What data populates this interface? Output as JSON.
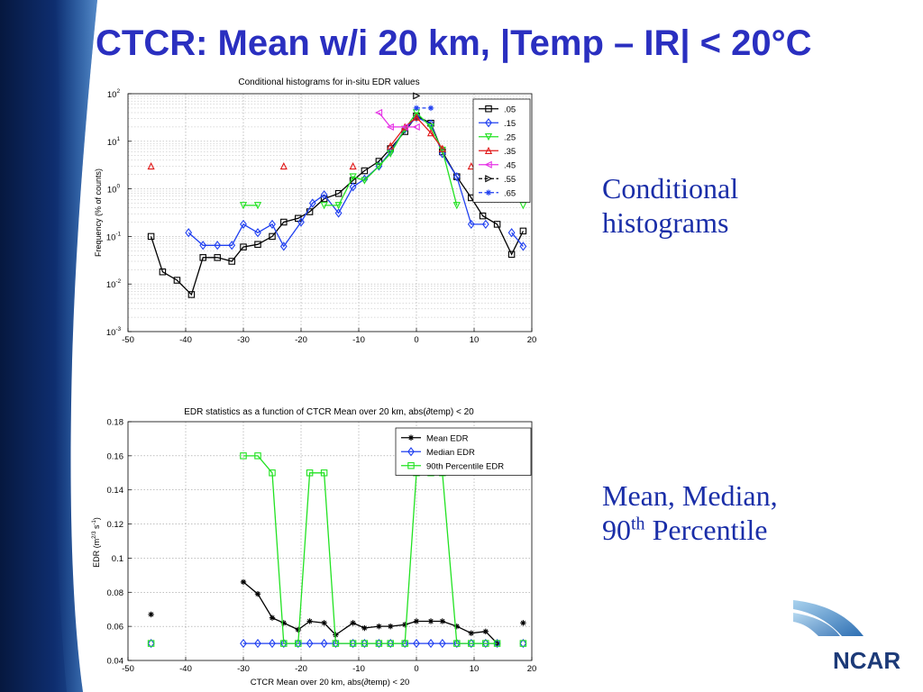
{
  "slide": {
    "title": "CTCR: Mean w/i 20 km, |Temp – IR| < 20°C",
    "note1_line1": "Conditional",
    "note1_line2": "histograms",
    "note2_line1": "Mean, Median,",
    "note2_line2_base": "90",
    "note2_line2_sup": "th",
    "note2_line2_rest": " Percentile",
    "logo_text": "NCAR"
  },
  "colors": {
    "title": "#2a2fc0",
    "side_text": "#1a2ea8",
    "band": "#0d2a6b",
    "logo": "#1c3a78"
  },
  "chart_data": [
    {
      "type": "line",
      "title": "Conditional histograms for in-situ EDR values",
      "xlabel": "",
      "ylabel": "Frequency (% of counts)",
      "xlim": [
        -50,
        20
      ],
      "ylim": [
        0.001,
        100
      ],
      "yscale": "log",
      "xticks": [
        -50,
        -40,
        -30,
        -20,
        -10,
        0,
        10,
        20
      ],
      "ytick_labels": [
        {
          "base": "10",
          "exp": "2",
          "value": 100
        },
        {
          "base": "10",
          "exp": "1",
          "value": 10
        },
        {
          "base": "10",
          "exp": "0",
          "value": 1
        },
        {
          "base": "10",
          "exp": "-1",
          "value": 0.1
        },
        {
          "base": "10",
          "exp": "-2",
          "value": 0.01
        },
        {
          "base": "10",
          "exp": "-3",
          "value": 0.001
        }
      ],
      "grid": true,
      "legend_position": "top-right",
      "series": [
        {
          "name": ".05",
          "color": "#000000",
          "marker": "square",
          "dashed": false,
          "segments": [
            [
              [
                -46,
                0.1
              ],
              [
                -44,
                0.018
              ],
              [
                -41.5,
                0.012
              ],
              [
                -39,
                0.006
              ],
              [
                -37,
                0.036
              ],
              [
                -34.5,
                0.036
              ],
              [
                -32,
                0.03
              ],
              [
                -30,
                0.06
              ],
              [
                -27.5,
                0.068
              ],
              [
                -25,
                0.1
              ],
              [
                -23,
                0.2
              ],
              [
                -20.5,
                0.24
              ],
              [
                -18.5,
                0.33
              ],
              [
                -16,
                0.62
              ],
              [
                -13.5,
                0.8
              ],
              [
                -11,
                1.5
              ],
              [
                -9,
                2.4
              ],
              [
                -6.5,
                3.8
              ],
              [
                -4.5,
                7
              ],
              [
                -2,
                16
              ],
              [
                0,
                34
              ],
              [
                2.5,
                24
              ],
              [
                4.5,
                6
              ],
              [
                7,
                1.8
              ],
              [
                9.5,
                0.65
              ],
              [
                11.5,
                0.27
              ],
              [
                14,
                0.18
              ],
              [
                16.5,
                0.042
              ],
              [
                18.5,
                0.13
              ]
            ]
          ]
        },
        {
          "name": ".15",
          "color": "#1f3ff0",
          "marker": "diamond",
          "dashed": false,
          "segments": [
            [
              [
                -39.5,
                0.12
              ],
              [
                -37,
                0.065
              ],
              [
                -34.5,
                0.065
              ],
              [
                -32,
                0.065
              ],
              [
                -30,
                0.18
              ],
              [
                -27.5,
                0.12
              ],
              [
                -25,
                0.18
              ],
              [
                -23,
                0.062
              ],
              [
                -20,
                0.2
              ],
              [
                -18,
                0.5
              ],
              [
                -16,
                0.75
              ],
              [
                -13.5,
                0.31
              ],
              [
                -11,
                1.1
              ],
              [
                -9,
                1.6
              ],
              [
                -6.5,
                3
              ],
              [
                -4.5,
                6
              ],
              [
                -2,
                18
              ],
              [
                0,
                32
              ],
              [
                2.5,
                23
              ],
              [
                4.5,
                5.5
              ],
              [
                7,
                1.8
              ],
              [
                9.5,
                0.18
              ],
              [
                12,
                0.18
              ]
            ],
            [
              [
                16.5,
                0.12
              ],
              [
                18.5,
                0.062
              ]
            ]
          ]
        },
        {
          "name": ".25",
          "color": "#22e222",
          "marker": "triangle-down",
          "dashed": false,
          "segments": [
            [
              [
                -30,
                0.45
              ],
              [
                -27.5,
                0.45
              ]
            ],
            [
              [
                -16,
                0.45
              ],
              [
                -13.5,
                0.45
              ],
              [
                -11,
                1.8
              ],
              [
                -9,
                1.5
              ],
              [
                -6.5,
                3
              ],
              [
                -4.5,
                5.5
              ],
              [
                -2,
                18
              ],
              [
                0,
                40
              ],
              [
                2.5,
                20
              ],
              [
                4.5,
                6.5
              ],
              [
                7,
                0.45
              ]
            ],
            [
              [
                18.5,
                0.45
              ]
            ]
          ]
        },
        {
          "name": ".35",
          "color": "#e01818",
          "marker": "triangle-up",
          "dashed": false,
          "segments": [
            [
              [
                -46,
                3
              ]
            ],
            [
              [
                -23,
                3
              ]
            ],
            [
              [
                -11,
                3
              ]
            ],
            [
              [
                -4.5,
                8
              ],
              [
                -2,
                20
              ],
              [
                0,
                32
              ],
              [
                2.5,
                15
              ],
              [
                4.5,
                7
              ]
            ],
            [
              [
                9.5,
                3
              ]
            ]
          ]
        },
        {
          "name": ".45",
          "color": "#e632e6",
          "marker": "triangle-left",
          "dashed": false,
          "segments": [
            [
              [
                -6.5,
                40
              ],
              [
                -4.5,
                20
              ],
              [
                -2,
                20
              ],
              [
                0,
                20
              ]
            ]
          ]
        },
        {
          "name": ".55",
          "color": "#000000",
          "marker": "triangle-right",
          "dashed": true,
          "segments": [
            [
              [
                0,
                90
              ]
            ]
          ]
        },
        {
          "name": ".65",
          "color": "#1f3ff0",
          "marker": "star",
          "dashed": true,
          "segments": [
            [
              [
                0,
                50
              ],
              [
                2.5,
                50
              ]
            ]
          ]
        }
      ]
    },
    {
      "type": "line",
      "title": "EDR statistics as a function of CTCR Mean over 20 km, abs(∂temp) < 20",
      "xlabel": "CTCR Mean over 20 km, abs(∂temp) < 20",
      "ylabel": "EDR (m2/3 s-1)",
      "ylabel_parts": {
        "pre": "EDR (m",
        "sup1": "2/3",
        "mid": " s",
        "sup2": "-1",
        "post": ")"
      },
      "xlim": [
        -50,
        20
      ],
      "ylim": [
        0.04,
        0.18
      ],
      "yscale": "linear",
      "xticks": [
        -50,
        -40,
        -30,
        -20,
        -10,
        0,
        10,
        20
      ],
      "yticks": [
        "0.04",
        "0.06",
        "0.08",
        "0.1",
        "0.12",
        "0.14",
        "0.16",
        "0.18"
      ],
      "grid": true,
      "legend_position": "top-right",
      "series": [
        {
          "name": "Mean EDR",
          "color": "#000000",
          "marker": "star",
          "dashed": false,
          "segments": [
            [
              [
                -46,
                0.067
              ]
            ],
            [
              [
                -30,
                0.086
              ],
              [
                -27.5,
                0.079
              ],
              [
                -25,
                0.065
              ],
              [
                -23,
                0.062
              ],
              [
                -20.5,
                0.058
              ],
              [
                -18.5,
                0.063
              ],
              [
                -16,
                0.062
              ],
              [
                -14,
                0.055
              ],
              [
                -11,
                0.062
              ],
              [
                -9,
                0.059
              ],
              [
                -6.5,
                0.06
              ],
              [
                -4.5,
                0.06
              ],
              [
                -2,
                0.061
              ],
              [
                0,
                0.063
              ],
              [
                2.5,
                0.063
              ],
              [
                4.5,
                0.063
              ],
              [
                7,
                0.06
              ],
              [
                9.5,
                0.056
              ],
              [
                12,
                0.057
              ],
              [
                14,
                0.05
              ]
            ],
            [
              [
                18.5,
                0.062
              ]
            ]
          ]
        },
        {
          "name": "Median EDR",
          "color": "#1f3ff0",
          "marker": "diamond",
          "dashed": false,
          "segments": [
            [
              [
                -46,
                0.05
              ]
            ],
            [
              [
                -30,
                0.05
              ],
              [
                -27.5,
                0.05
              ],
              [
                -25,
                0.05
              ],
              [
                -23,
                0.05
              ],
              [
                -20.5,
                0.05
              ],
              [
                -18.5,
                0.05
              ],
              [
                -16,
                0.05
              ],
              [
                -14,
                0.05
              ],
              [
                -11,
                0.05
              ],
              [
                -9,
                0.05
              ],
              [
                -6.5,
                0.05
              ],
              [
                -4.5,
                0.05
              ],
              [
                -2,
                0.05
              ],
              [
                0,
                0.05
              ],
              [
                2.5,
                0.05
              ],
              [
                4.5,
                0.05
              ],
              [
                7,
                0.05
              ],
              [
                9.5,
                0.05
              ],
              [
                12,
                0.05
              ],
              [
                14,
                0.05
              ]
            ],
            [
              [
                18.5,
                0.05
              ]
            ]
          ]
        },
        {
          "name": "90th Percentile EDR",
          "color": "#22e222",
          "marker": "square",
          "dashed": false,
          "segments": [
            [
              [
                -46,
                0.05
              ]
            ],
            [
              [
                -30,
                0.16
              ],
              [
                -27.5,
                0.16
              ],
              [
                -25,
                0.15
              ],
              [
                -23,
                0.05
              ],
              [
                -20.5,
                0.05
              ],
              [
                -18.5,
                0.15
              ],
              [
                -16,
                0.15
              ],
              [
                -14,
                0.05
              ],
              [
                -11,
                0.05
              ],
              [
                -9,
                0.05
              ],
              [
                -6.5,
                0.05
              ],
              [
                -4.5,
                0.05
              ],
              [
                -2,
                0.05
              ],
              [
                0,
                0.15
              ],
              [
                2.5,
                0.15
              ],
              [
                4.5,
                0.15
              ],
              [
                7,
                0.05
              ],
              [
                9.5,
                0.05
              ],
              [
                12,
                0.05
              ],
              [
                14,
                0.05
              ]
            ],
            [
              [
                18.5,
                0.05
              ]
            ]
          ]
        }
      ]
    }
  ]
}
